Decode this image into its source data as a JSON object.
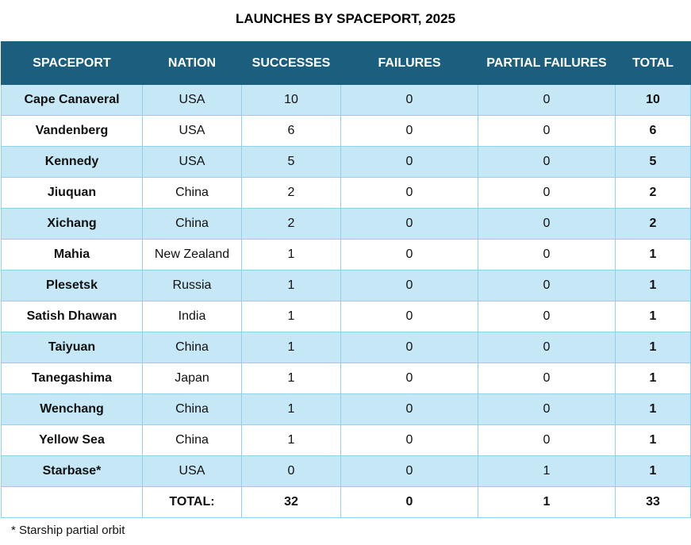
{
  "title": "LAUNCHES BY SPACEPORT, 2025",
  "table": {
    "headers": [
      "SPACEPORT",
      "NATION",
      "SUCCESSES",
      "FAILURES",
      "PARTIAL FAILURES",
      "TOTAL"
    ],
    "rows": [
      [
        "Cape Canaveral",
        "USA",
        10,
        0,
        0,
        10
      ],
      [
        "Vandenberg",
        "USA",
        6,
        0,
        0,
        6
      ],
      [
        "Kennedy",
        "USA",
        5,
        0,
        0,
        5
      ],
      [
        "Jiuquan",
        "China",
        2,
        0,
        0,
        2
      ],
      [
        "Xichang",
        "China",
        2,
        0,
        0,
        2
      ],
      [
        "Mahia",
        "New Zealand",
        1,
        0,
        0,
        1
      ],
      [
        "Plesetsk",
        "Russia",
        1,
        0,
        0,
        1
      ],
      [
        "Satish Dhawan",
        "India",
        1,
        0,
        0,
        1
      ],
      [
        "Taiyuan",
        "China",
        1,
        0,
        0,
        1
      ],
      [
        "Tanegashima",
        "Japan",
        1,
        0,
        0,
        1
      ],
      [
        "Wenchang",
        "China",
        1,
        0,
        0,
        1
      ],
      [
        "Yellow Sea",
        "China",
        1,
        0,
        0,
        1
      ],
      [
        "Starbase*",
        "USA",
        0,
        0,
        1,
        1
      ]
    ],
    "totals": {
      "label": "TOTAL:",
      "values": [
        32,
        0,
        1,
        33
      ]
    }
  },
  "footnote": "* Starship partial orbit"
}
